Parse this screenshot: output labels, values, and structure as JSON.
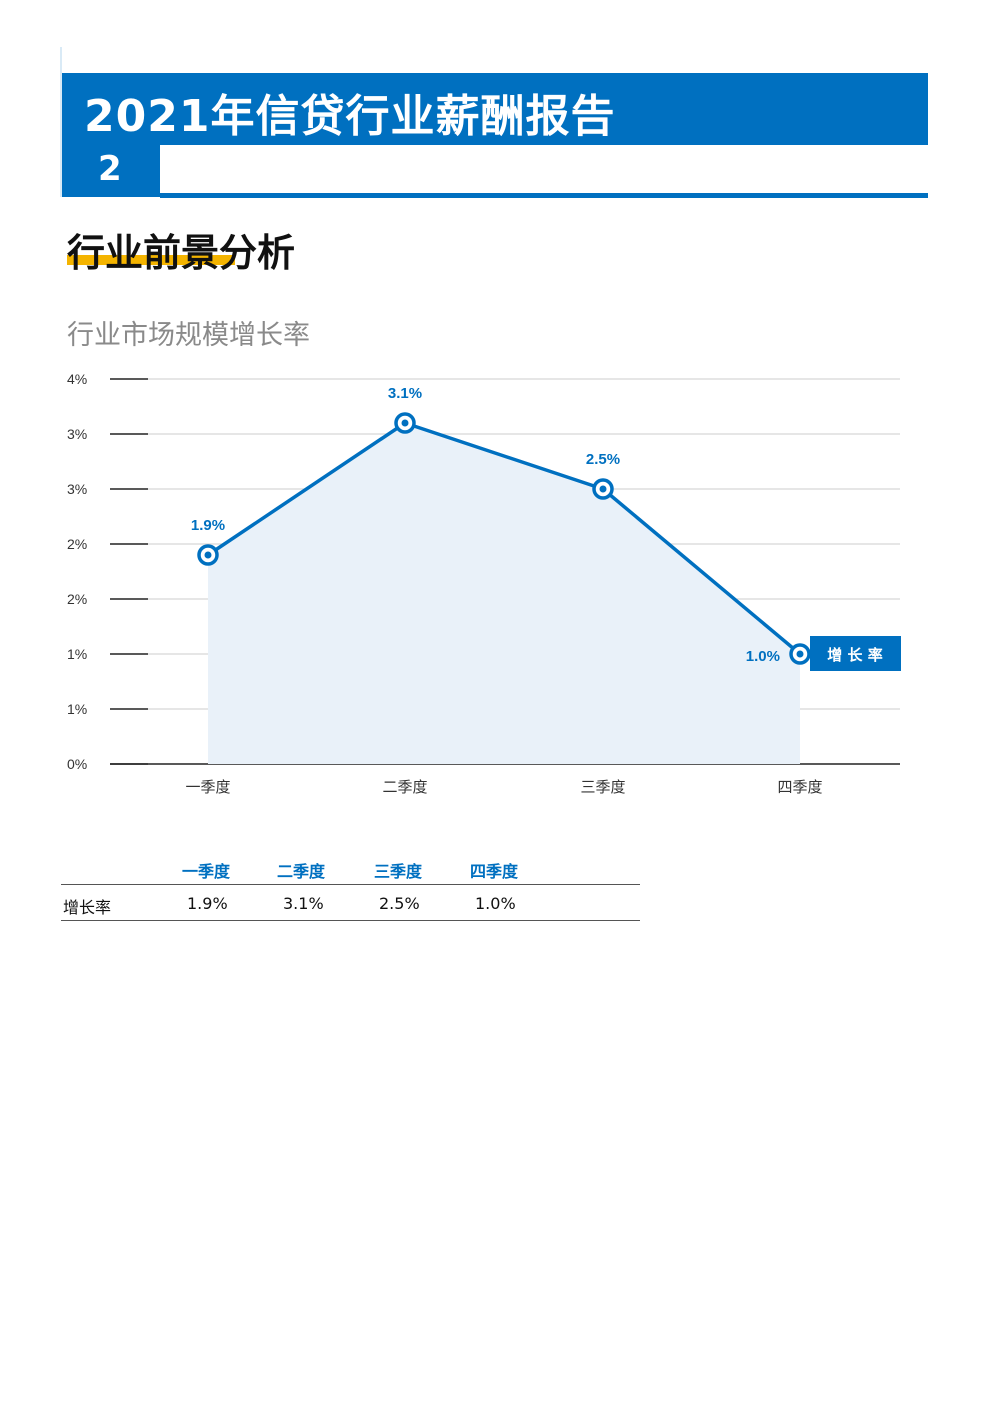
{
  "header": {
    "report_title": "2021年信贷行业薪酬报告",
    "page_number": "2"
  },
  "section": {
    "title": "行业前景分析"
  },
  "colors": {
    "brand_blue": "#0070c0",
    "accent_yellow": "#f4b400",
    "area_fill": "#e9f1f9",
    "grid": "#d6d6d6"
  },
  "chart_data": {
    "type": "line",
    "title": "行业市场规模增长率",
    "categories": [
      "一季度",
      "二季度",
      "三季度",
      "四季度"
    ],
    "series": [
      {
        "name": "增 长 率",
        "values": [
          1.9,
          3.1,
          2.5,
          1.0
        ],
        "labels": [
          "1.9%",
          "3.1%",
          "2.5%",
          "1.0%"
        ]
      }
    ],
    "y_ticks": [
      "0%",
      "1%",
      "1%",
      "2%",
      "2%",
      "3%",
      "3%",
      "4%"
    ],
    "ylim": [
      0,
      3.5
    ],
    "grid": true,
    "area_fill": true,
    "legend": "end-of-line label"
  },
  "table": {
    "headers": [
      "一季度",
      "二季度",
      "三季度",
      "四季度"
    ],
    "row_label": "增长率",
    "values": [
      "1.9%",
      "3.1%",
      "2.5%",
      "1.0%"
    ]
  }
}
